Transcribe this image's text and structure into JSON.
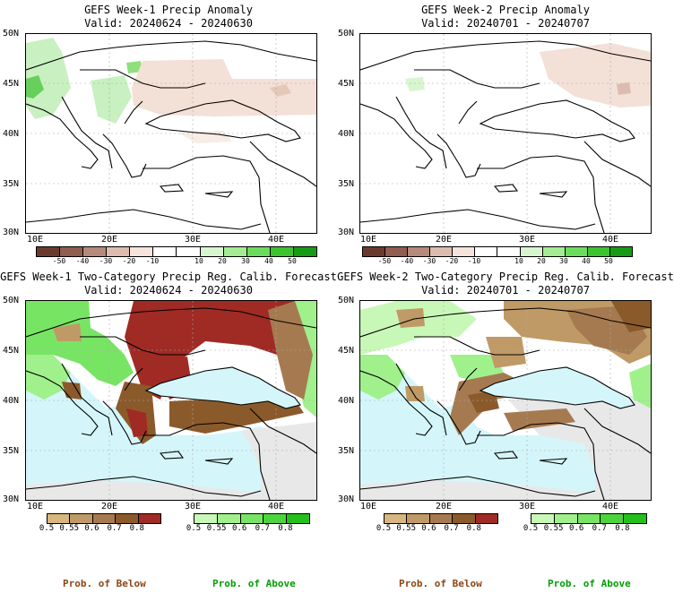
{
  "panels": {
    "p1": {
      "title": "GEFS Week-1 Precip Anomaly",
      "valid": "Valid: 20240624 - 20240630"
    },
    "p2": {
      "title": "GEFS Week-2 Precip Anomaly",
      "valid": "Valid: 20240701 - 20240707"
    },
    "p3": {
      "title": "GEFS Week-1 Two-Category Precip Reg. Calib. Forecast",
      "valid": "Valid: 20240624 - 20240630"
    },
    "p4": {
      "title": "GEFS Week-2 Two-Category Precip Reg. Calib. Forecast",
      "valid": "Valid: 20240701 - 20240707"
    }
  },
  "axes": {
    "lat_labels": [
      "50N",
      "45N",
      "40N",
      "35N",
      "30N"
    ],
    "lon_labels": [
      "10E",
      "20E",
      "30E",
      "40E"
    ]
  },
  "anomaly_colorbar": {
    "colors": [
      "#6b3a2f",
      "#8f5e50",
      "#b58a7c",
      "#dcbcae",
      "#f4e4dc",
      "#ffffff",
      "#ffffff",
      "#d8f5d0",
      "#a4ec94",
      "#6cdc5c",
      "#3cc430",
      "#169c14"
    ],
    "labels": [
      "-50",
      "-40",
      "-30",
      "-20",
      "-10",
      "10",
      "20",
      "30",
      "40",
      "50"
    ]
  },
  "prob_colorbar": {
    "below_colors": [
      "#d7b77e",
      "#c09a66",
      "#a67a50",
      "#8b5a2b",
      "#a02a24"
    ],
    "above_colors": [
      "#c8f8b8",
      "#a0f08c",
      "#78e464",
      "#4cd43c",
      "#24c01c"
    ],
    "labels": [
      "0.5",
      "0.55",
      "0.6",
      "0.7",
      "0.8"
    ]
  },
  "legend": {
    "below": "Prob. of Below",
    "above": "Prob. of Above",
    "below_color": "#8b4513",
    "above_color": "#00a000"
  },
  "colors": {
    "sea": "#d4f6fa",
    "land_gray": "#e8e8e8",
    "grid": "#aaaaaa"
  }
}
